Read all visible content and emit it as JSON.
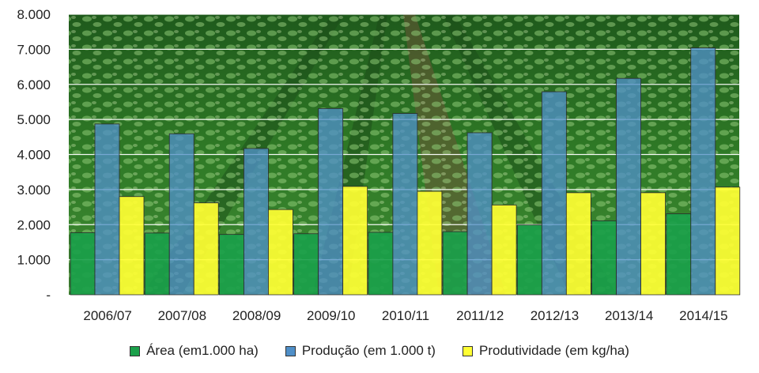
{
  "chart_data": {
    "type": "bar",
    "categories": [
      "2006/07",
      "2007/08",
      "2008/09",
      "2009/10",
      "2010/11",
      "2011/12",
      "2012/13",
      "2013/14",
      "2014/15"
    ],
    "series": [
      {
        "name": "Área (em1.000 ha)",
        "color": "#1aa04a",
        "values": [
          1770,
          1760,
          1720,
          1740,
          1780,
          1800,
          1990,
          2110,
          2310
        ]
      },
      {
        "name": "Produção (em 1.000 t)",
        "color": "#4f8fc8",
        "values": [
          4870,
          4590,
          4170,
          5310,
          5170,
          4620,
          5790,
          6170,
          7040
        ]
      },
      {
        "name": "Produtividade (em kg/ha)",
        "color": "#ffff33",
        "values": [
          2800,
          2620,
          2430,
          3090,
          2950,
          2560,
          2910,
          2910,
          3070
        ]
      }
    ],
    "ylim": [
      0,
      8000
    ],
    "yticks": [
      "-",
      "1.000",
      "2.000",
      "3.000",
      "4.000",
      "5.000",
      "6.000",
      "7.000",
      "8.000"
    ],
    "grid": true,
    "legend_position": "bottom"
  }
}
